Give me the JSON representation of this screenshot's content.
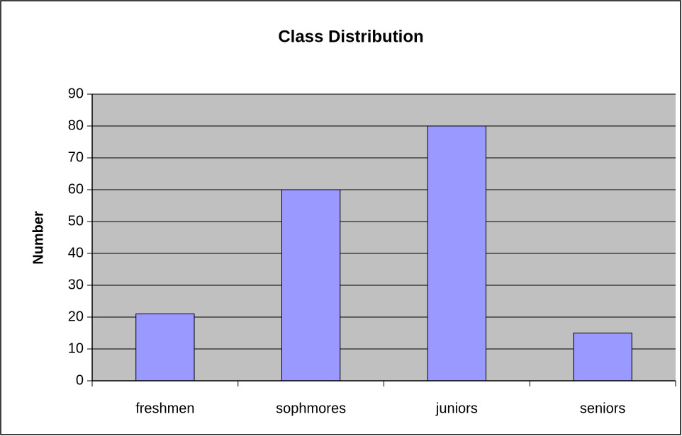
{
  "chart_data": {
    "type": "bar",
    "title": "Class Distribution",
    "y_label": "Number",
    "categories": [
      "freshmen",
      "sophmores",
      "juniors",
      "seniors"
    ],
    "values": [
      21,
      60,
      80,
      15
    ],
    "color": "#9999ff",
    "background": "#c0c0c0",
    "ylim": [
      0,
      90
    ],
    "yticks": [
      0,
      10,
      20,
      30,
      40,
      50,
      60,
      70,
      80,
      90
    ],
    "grid": true
  }
}
